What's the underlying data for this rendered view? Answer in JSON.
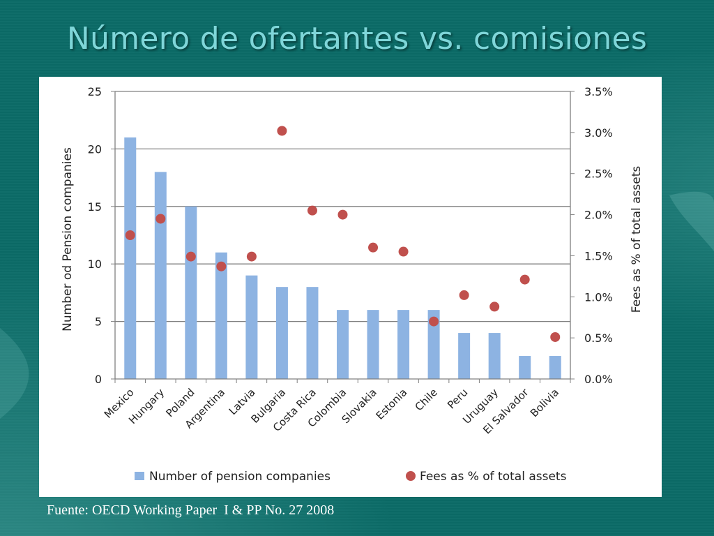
{
  "slide": {
    "title": "Número de ofertantes vs. comisiones",
    "source": "Fuente: OECD Working Paper  I & PP No. 27 2008"
  },
  "colors": {
    "background": "#0b6b67",
    "title": "#7fd6d9",
    "bar": "#8db3e2",
    "dot": "#c0504d",
    "gridline": "#808080"
  },
  "chart_data": {
    "type": "bar",
    "title": "",
    "categories": [
      "Mexico",
      "Hungary",
      "Poland",
      "Argentina",
      "Latvia",
      "Bulgaria",
      "Costa Rica",
      "Colombia",
      "Slovakia",
      "Estonia",
      "Chile",
      "Peru",
      "Uruguay",
      "El Salvador",
      "Bolivia"
    ],
    "series": [
      {
        "name": "Number of pension companies",
        "type": "bar",
        "axis": "left",
        "values": [
          21,
          18,
          15,
          11,
          9,
          8,
          8,
          6,
          6,
          6,
          6,
          4,
          4,
          2,
          2
        ]
      },
      {
        "name": "Fees as % of total assets",
        "type": "scatter",
        "axis": "right",
        "values": [
          1.75,
          1.95,
          1.49,
          1.37,
          1.49,
          3.02,
          2.05,
          2.0,
          1.6,
          1.55,
          0.7,
          1.02,
          0.88,
          1.21,
          0.51
        ]
      }
    ],
    "ylabel": "Number od Pension companies",
    "y2label": "Fees as % of total assets",
    "ylim": [
      0,
      25
    ],
    "y2lim": [
      0,
      3.5
    ],
    "yticks": [
      "0",
      "5",
      "10",
      "15",
      "20",
      "25"
    ],
    "y2ticks": [
      "0.0%",
      "0.5%",
      "1.0%",
      "1.5%",
      "2.0%",
      "2.5%",
      "3.0%",
      "3.5%"
    ],
    "grid": true,
    "legend": "bottom"
  }
}
